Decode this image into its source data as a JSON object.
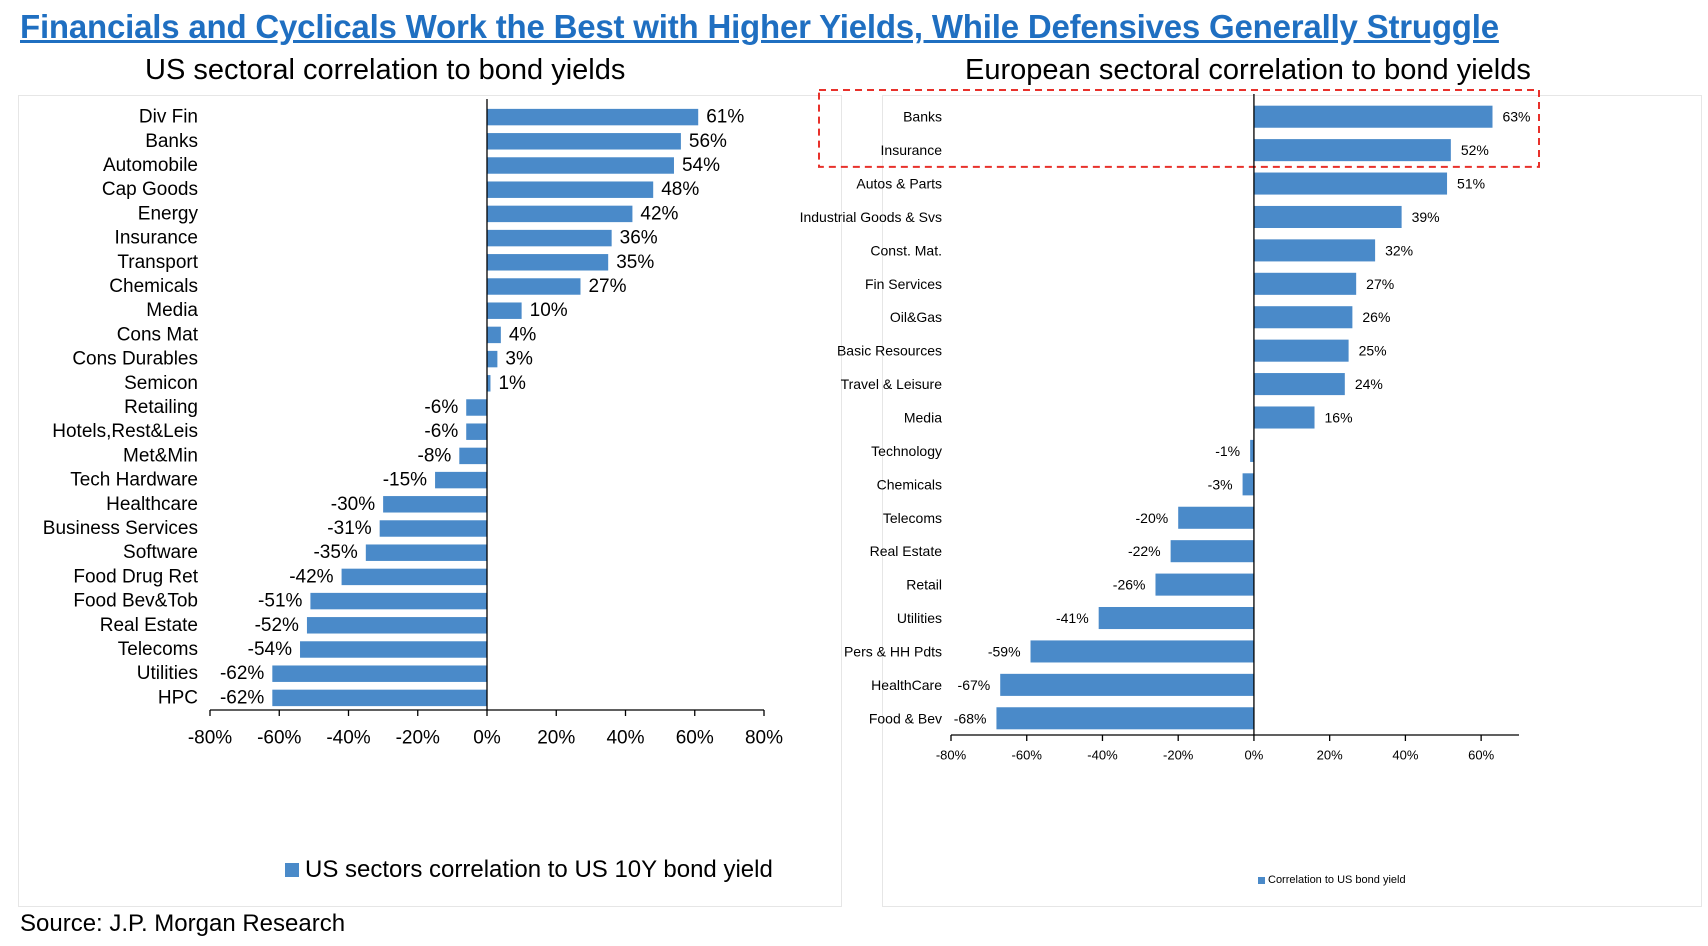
{
  "headline": "Financials and Cyclicals Work the Best with Higher Yields, While Defensives Generally Struggle",
  "source": "Source: J.P. Morgan Research",
  "colors": {
    "bar": "#4a8ac9",
    "headline": "#1f6fc1",
    "highlight_box": "#e8312b"
  },
  "chart_data": [
    {
      "type": "bar",
      "orientation": "horizontal",
      "title": "US sectoral correlation to bond yields",
      "legend": "US sectors correlation to US 10Y bond yield",
      "legend_position": "bottom",
      "xlim": [
        -80,
        80
      ],
      "xticks": [
        "-80%",
        "-60%",
        "-40%",
        "-20%",
        "0%",
        "20%",
        "40%",
        "60%",
        "80%"
      ],
      "grid": false,
      "categories": [
        "Div Fin",
        "Banks",
        "Automobile",
        "Cap Goods",
        "Energy",
        "Insurance",
        "Transport",
        "Chemicals",
        "Media",
        "Cons Mat",
        "Cons Durables",
        "Semicon",
        "Retailing",
        "Hotels,Rest&Leis",
        "Met&Min",
        "Tech Hardware",
        "Healthcare",
        "Business Services",
        "Software",
        "Food Drug Ret",
        "Food Bev&Tob",
        "Real Estate",
        "Telecoms",
        "Utilities",
        "HPC"
      ],
      "values": [
        61,
        56,
        54,
        48,
        42,
        36,
        35,
        27,
        10,
        4,
        3,
        1,
        -6,
        -6,
        -8,
        -15,
        -30,
        -31,
        -35,
        -42,
        -51,
        -52,
        -54,
        -62,
        -62
      ],
      "labels": [
        "61%",
        "56%",
        "54%",
        "48%",
        "42%",
        "36%",
        "35%",
        "27%",
        "10%",
        "4%",
        "3%",
        "1%",
        "-6%",
        "-6%",
        "-8%",
        "-15%",
        "-30%",
        "-31%",
        "-35%",
        "-42%",
        "-51%",
        "-52%",
        "-54%",
        "-62%",
        "-62%"
      ]
    },
    {
      "type": "bar",
      "orientation": "horizontal",
      "title": "European sectoral correlation to bond yields",
      "legend": "Correlation to US bond yield",
      "legend_position": "bottom",
      "xlim": [
        -80,
        70
      ],
      "xticks": [
        "-80%",
        "-60%",
        "-40%",
        "-20%",
        "0%",
        "20%",
        "40%",
        "60%"
      ],
      "grid": false,
      "highlighted_categories": [
        "Banks",
        "Insurance"
      ],
      "categories": [
        "Banks",
        "Insurance",
        "Autos & Parts",
        "Industrial Goods & Svs",
        "Const. Mat.",
        "Fin Services",
        "Oil&Gas",
        "Basic Resources",
        "Travel & Leisure",
        "Media",
        "Technology",
        "Chemicals",
        "Telecoms",
        "Real Estate",
        "Retail",
        "Utilities",
        "Pers & HH Pdts",
        "HealthCare",
        "Food & Bev"
      ],
      "values": [
        63,
        52,
        51,
        39,
        32,
        27,
        26,
        25,
        24,
        16,
        -1,
        -3,
        -20,
        -22,
        -26,
        -41,
        -59,
        -67,
        -68
      ],
      "labels": [
        "63%",
        "52%",
        "51%",
        "39%",
        "32%",
        "27%",
        "26%",
        "25%",
        "24%",
        "16%",
        "-1%",
        "-3%",
        "-20%",
        "-22%",
        "-26%",
        "-41%",
        "-59%",
        "-67%",
        "-68%"
      ]
    }
  ]
}
